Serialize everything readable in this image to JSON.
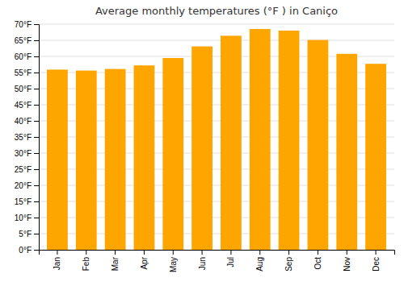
{
  "chart_data": {
    "type": "bar",
    "title": "Average monthly temperatures (°F ) in Caniço",
    "categories": [
      "Jan",
      "Feb",
      "Mar",
      "Apr",
      "May",
      "Jun",
      "Jul",
      "Aug",
      "Sep",
      "Oct",
      "Nov",
      "Dec"
    ],
    "values": [
      55.9,
      55.6,
      56.1,
      57.2,
      59.5,
      63.1,
      66.4,
      68.5,
      68.0,
      65.1,
      60.8,
      57.7
    ],
    "color": "#FFA500",
    "ylim": [
      0,
      70
    ],
    "yticks": [
      {
        "value": 0,
        "label": "0°F"
      },
      {
        "value": 5,
        "label": "5°F"
      },
      {
        "value": 10,
        "label": "10°F"
      },
      {
        "value": 15,
        "label": "15°F"
      },
      {
        "value": 20,
        "label": "20°F"
      },
      {
        "value": 25,
        "label": "25°F"
      },
      {
        "value": 30,
        "label": "30°F"
      },
      {
        "value": 35,
        "label": "35°F"
      },
      {
        "value": 40,
        "label": "40°F"
      },
      {
        "value": 45,
        "label": "45°F"
      },
      {
        "value": 50,
        "label": "50°F"
      },
      {
        "value": 55,
        "label": "55°F"
      },
      {
        "value": 60,
        "label": "60°F"
      },
      {
        "value": 65,
        "label": "65°F"
      },
      {
        "value": 70,
        "label": "70°F"
      }
    ],
    "grid": true
  }
}
